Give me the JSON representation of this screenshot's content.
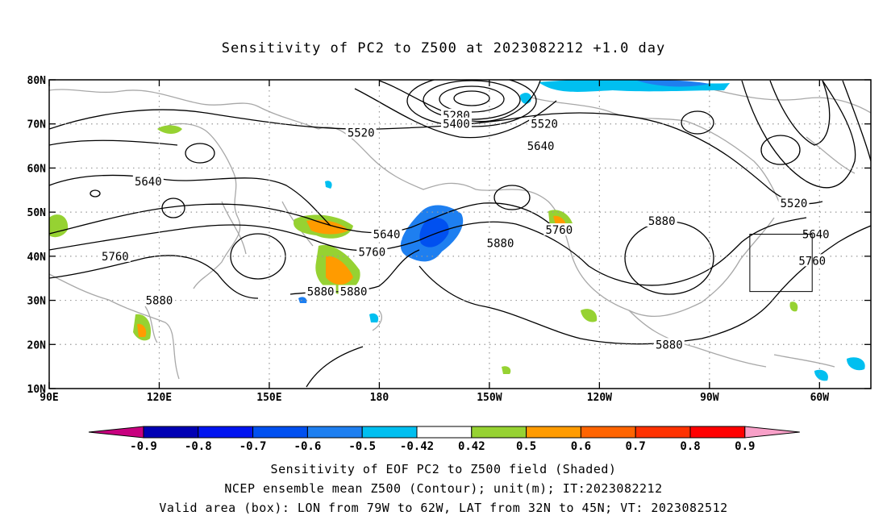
{
  "title": "Sensitivity of PC2 to Z500 at 2023082212 +1.0 day",
  "map": {
    "lat_ticks": [
      {
        "value": 80,
        "label": "80N"
      },
      {
        "value": 70,
        "label": "70N"
      },
      {
        "value": 60,
        "label": "60N"
      },
      {
        "value": 50,
        "label": "50N"
      },
      {
        "value": 40,
        "label": "40N"
      },
      {
        "value": 30,
        "label": "30N"
      },
      {
        "value": 20,
        "label": "20N"
      },
      {
        "value": 10,
        "label": "10N"
      }
    ],
    "lon_ticks": [
      {
        "value": 90,
        "label": "90E"
      },
      {
        "value": 120,
        "label": "120E"
      },
      {
        "value": 150,
        "label": "150E"
      },
      {
        "value": 180,
        "label": "180"
      },
      {
        "value": 210,
        "label": "150W"
      },
      {
        "value": 240,
        "label": "120W"
      },
      {
        "value": 270,
        "label": "90W"
      },
      {
        "value": 300,
        "label": "60W"
      }
    ],
    "contour_labels": [
      {
        "text": "5280",
        "lon": 201,
        "lat": 72
      },
      {
        "text": "5400",
        "lon": 201,
        "lat": 70
      },
      {
        "text": "5520",
        "lon": 175,
        "lat": 68
      },
      {
        "text": "5520",
        "lon": 225,
        "lat": 70
      },
      {
        "text": "5640",
        "lon": 224,
        "lat": 65
      },
      {
        "text": "5520",
        "lon": 293,
        "lat": 52
      },
      {
        "text": "5640",
        "lon": 117,
        "lat": 57
      },
      {
        "text": "5640",
        "lon": 182,
        "lat": 45
      },
      {
        "text": "5760",
        "lon": 178,
        "lat": 41
      },
      {
        "text": "5760",
        "lon": 108,
        "lat": 40
      },
      {
        "text": "5760",
        "lon": 229,
        "lat": 46
      },
      {
        "text": "5880",
        "lon": 213,
        "lat": 43
      },
      {
        "text": "5880",
        "lon": 257,
        "lat": 48
      },
      {
        "text": "5640",
        "lon": 299,
        "lat": 45
      },
      {
        "text": "5760",
        "lon": 298,
        "lat": 39
      },
      {
        "text": "5880",
        "lon": 120,
        "lat": 30
      },
      {
        "text": "5880",
        "lon": 164,
        "lat": 32
      },
      {
        "text": "5880",
        "lon": 173,
        "lat": 32
      },
      {
        "text": "5880",
        "lon": 259,
        "lat": 20
      }
    ],
    "valid_box": {
      "lon_min": 281,
      "lon_max": 298,
      "lat_min": 32,
      "lat_max": 45
    }
  },
  "colorbar": {
    "colors": [
      "#c8007f",
      "#0000b4",
      "#0014f0",
      "#0050f0",
      "#1e7ff0",
      "#00bff0",
      "#ffffff",
      "#96d232",
      "#ff9b00",
      "#ff6400",
      "#ff3200",
      "#ff0000",
      "#f8a0c8"
    ],
    "labels": [
      "-0.9",
      "-0.8",
      "-0.7",
      "-0.6",
      "-0.5",
      "-0.42",
      "0.42",
      "0.5",
      "0.6",
      "0.7",
      "0.8",
      "0.9"
    ]
  },
  "captions": [
    "Sensitivity of EOF PC2 to Z500 field (Shaded)",
    "NCEP ensemble mean Z500 (Contour); unit(m); IT:2023082212",
    "Valid area (box): LON from 79W to 62W, LAT from 32N to 45N; VT: 2023082512"
  ]
}
